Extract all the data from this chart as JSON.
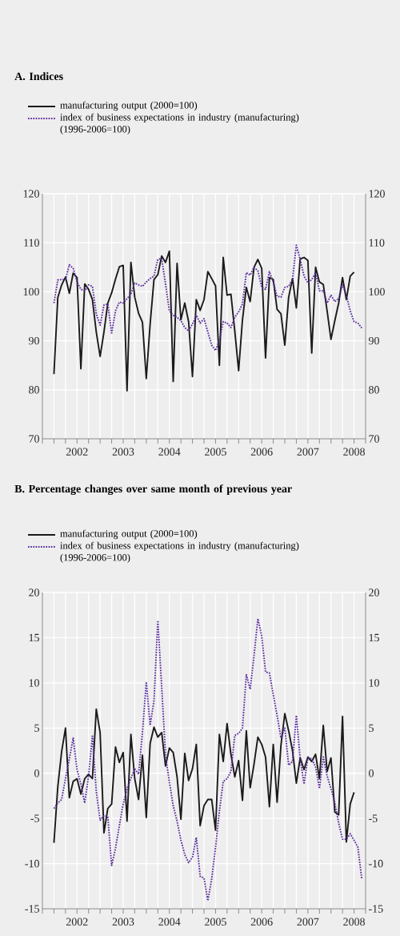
{
  "chart_data": [
    {
      "type": "line",
      "title": "A.  Indices",
      "x": [
        "2002-01",
        "2002-02",
        "2002-03",
        "2002-04",
        "2002-05",
        "2002-06",
        "2002-07",
        "2002-08",
        "2002-09",
        "2002-10",
        "2002-11",
        "2002-12",
        "2003-01",
        "2003-02",
        "2003-03",
        "2003-04",
        "2003-05",
        "2003-06",
        "2003-07",
        "2003-08",
        "2003-09",
        "2003-10",
        "2003-11",
        "2003-12",
        "2004-01",
        "2004-02",
        "2004-03",
        "2004-04",
        "2004-05",
        "2004-06",
        "2004-07",
        "2004-08",
        "2004-09",
        "2004-10",
        "2004-11",
        "2004-12",
        "2005-01",
        "2005-02",
        "2005-03",
        "2005-04",
        "2005-05",
        "2005-06",
        "2005-07",
        "2005-08",
        "2005-09",
        "2005-10",
        "2005-11",
        "2005-12",
        "2006-01",
        "2006-02",
        "2006-03",
        "2006-04",
        "2006-05",
        "2006-06",
        "2006-07",
        "2006-08",
        "2006-09",
        "2006-10",
        "2006-11",
        "2006-12",
        "2007-01",
        "2007-02",
        "2007-03",
        "2007-04",
        "2007-05",
        "2007-06",
        "2007-07",
        "2007-08",
        "2007-09",
        "2007-10",
        "2007-11",
        "2007-12",
        "2008-01",
        "2008-02",
        "2008-03",
        "2008-04",
        "2008-05",
        "2008-06",
        "2008-07",
        "2008-08",
        "2008-09"
      ],
      "series": [
        {
          "name": "manufacturing output (2000=100)",
          "color": "#1a1a1a",
          "line_style": "solid",
          "values": [
            83.2,
            98.8,
            101.4,
            103,
            99.7,
            103.8,
            102.9,
            84.3,
            101.6,
            100.5,
            98.4,
            91.8,
            86.8,
            91.8,
            97.7,
            99.8,
            102.6,
            105.1,
            105.4,
            79.8,
            106,
            98.9,
            95.6,
            93.8,
            82.3,
            93.4,
            102.5,
            103.5,
            107.3,
            106,
            108.3,
            81.7,
            105.8,
            94.3,
            97.7,
            93.9,
            82.7,
            98.4,
            96.2,
            98.4,
            104.1,
            102.7,
            101.2,
            85,
            107,
            99.3,
            99.5,
            92,
            83.9,
            94.3,
            100.9,
            98,
            105,
            106.6,
            104.8,
            86.5,
            102.9,
            102.5,
            96.4,
            95.5,
            89.1,
            98.9,
            102.7,
            96.7,
            106.7,
            107,
            106.4,
            87.5,
            105,
            102,
            101.5,
            96.1,
            90.3,
            94.1,
            97.7,
            102.9,
            98.4,
            103.2,
            104,
            null,
            null
          ]
        },
        {
          "name": "index of business expectations in industry (manufacturing) (1996-2006=100)",
          "color": "#5a2ca0",
          "line_style": "dotted",
          "values": [
            97.7,
            102.4,
            102.5,
            102.5,
            105.5,
            104.8,
            102,
            100.5,
            100.2,
            101.4,
            101.1,
            95.5,
            93.2,
            97.3,
            97.5,
            91.6,
            96.1,
            97.9,
            97.7,
            98.6,
            99.5,
            101.8,
            101.4,
            101.1,
            102,
            102.7,
            103.2,
            106.6,
            106.8,
            101.6,
            96.1,
            95.2,
            94.8,
            94.1,
            92.7,
            92,
            93.4,
            95.2,
            93.6,
            94.5,
            91.8,
            89.1,
            88,
            90.2,
            93.9,
            93.6,
            92.7,
            94.8,
            95.9,
            97.5,
            103.9,
            103.4,
            105,
            104.3,
            100.9,
            100.5,
            104.1,
            102,
            99.1,
            98.9,
            100.9,
            101.1,
            102.5,
            109.5,
            106.6,
            103.2,
            101.8,
            102.5,
            103.9,
            100.2,
            100.2,
            97.7,
            99.3,
            98,
            98.6,
            101.4,
            99.3,
            96.1,
            93.9,
            93.6,
            92.6
          ]
        }
      ],
      "xlim": [
        "2001-10-01",
        "2008-10-01"
      ],
      "xticks": [
        {
          "value": "2001-10-01",
          "label": null
        },
        {
          "value": "2002-01-01",
          "label": null
        },
        {
          "value": "2002-04-01",
          "label": null
        },
        {
          "value": "2002-07-01",
          "label": "2002"
        },
        {
          "value": "2002-10-01",
          "label": null
        },
        {
          "value": "2003-01-01",
          "label": null
        },
        {
          "value": "2003-04-01",
          "label": null
        },
        {
          "value": "2003-07-01",
          "label": "2003"
        },
        {
          "value": "2003-10-01",
          "label": null
        },
        {
          "value": "2004-01-01",
          "label": null
        },
        {
          "value": "2004-04-01",
          "label": null
        },
        {
          "value": "2004-07-01",
          "label": "2004"
        },
        {
          "value": "2004-10-01",
          "label": null
        },
        {
          "value": "2005-01-01",
          "label": null
        },
        {
          "value": "2005-04-01",
          "label": null
        },
        {
          "value": "2005-07-01",
          "label": "2005"
        },
        {
          "value": "2005-10-01",
          "label": null
        },
        {
          "value": "2006-01-01",
          "label": null
        },
        {
          "value": "2006-04-01",
          "label": null
        },
        {
          "value": "2006-07-01",
          "label": "2006"
        },
        {
          "value": "2006-10-01",
          "label": null
        },
        {
          "value": "2007-01-01",
          "label": null
        },
        {
          "value": "2007-04-01",
          "label": null
        },
        {
          "value": "2007-07-01",
          "label": "2007"
        },
        {
          "value": "2007-10-01",
          "label": null
        },
        {
          "value": "2008-01-01",
          "label": null
        },
        {
          "value": "2008-04-01",
          "label": null
        },
        {
          "value": "2008-07-01",
          "label": "2008"
        },
        {
          "value": "2008-10-01",
          "label": null
        }
      ],
      "ylim": [
        70,
        120
      ],
      "yticks": [
        70,
        80,
        90,
        100,
        110,
        120
      ],
      "y2lim": [
        70,
        120
      ],
      "y2ticks": [
        70,
        80,
        90,
        100,
        110,
        120
      ],
      "grid": true,
      "legend": "top left"
    },
    {
      "type": "line",
      "title": "B.  Percentage changes over same month of previous year",
      "x": [
        "2002-01",
        "2002-02",
        "2002-03",
        "2002-04",
        "2002-05",
        "2002-06",
        "2002-07",
        "2002-08",
        "2002-09",
        "2002-10",
        "2002-11",
        "2002-12",
        "2003-01",
        "2003-02",
        "2003-03",
        "2003-04",
        "2003-05",
        "2003-06",
        "2003-07",
        "2003-08",
        "2003-09",
        "2003-10",
        "2003-11",
        "2003-12",
        "2004-01",
        "2004-02",
        "2004-03",
        "2004-04",
        "2004-05",
        "2004-06",
        "2004-07",
        "2004-08",
        "2004-09",
        "2004-10",
        "2004-11",
        "2004-12",
        "2005-01",
        "2005-02",
        "2005-03",
        "2005-04",
        "2005-05",
        "2005-06",
        "2005-07",
        "2005-08",
        "2005-09",
        "2005-10",
        "2005-11",
        "2005-12",
        "2006-01",
        "2006-02",
        "2006-03",
        "2006-04",
        "2006-05",
        "2006-06",
        "2006-07",
        "2006-08",
        "2006-09",
        "2006-10",
        "2006-11",
        "2006-12",
        "2007-01",
        "2007-02",
        "2007-03",
        "2007-04",
        "2007-05",
        "2007-06",
        "2007-07",
        "2007-08",
        "2007-09",
        "2007-10",
        "2007-11",
        "2007-12",
        "2008-01",
        "2008-02",
        "2008-03",
        "2008-04",
        "2008-05",
        "2008-06",
        "2008-07",
        "2008-08",
        "2008-09"
      ],
      "series": [
        {
          "name": "manufacturing output (2000=100)",
          "color": "#1a1a1a",
          "line_style": "solid",
          "values": [
            -7.7,
            -1.5,
            2.4,
            5,
            -2.7,
            -0.9,
            -0.6,
            -2.3,
            -0.6,
            -0.1,
            -0.6,
            7.1,
            4.5,
            -6.6,
            -3.9,
            -3.4,
            2.9,
            1.2,
            2.3,
            -5.3,
            4.3,
            -0.6,
            -2.9,
            2,
            -4.9,
            3.3,
            5.1,
            4,
            4.5,
            0.8,
            2.8,
            2.3,
            -0.4,
            -5.1,
            2.2,
            -0.8,
            0.5,
            3.2,
            -5.8,
            -3.6,
            -2.9,
            -2.9,
            -6.3,
            4.3,
            1.3,
            5.5,
            2.1,
            -0.4,
            1.4,
            -3,
            4.7,
            -1.6,
            1,
            4,
            3.2,
            1.8,
            -3.7,
            3.2,
            -3.2,
            3.1,
            6.6,
            4.7,
            2.5,
            -1.1,
            1.7,
            0.4,
            1.8,
            1.3,
            2.1,
            -0.6,
            5.3,
            0.2,
            1.7,
            -4.3,
            -4.6,
            6.3,
            -7.6,
            -3.4,
            -2.1,
            null,
            null
          ]
        },
        {
          "name": "index of business expectations in industry (manufacturing) (1996-2006=100)",
          "color": "#5a2ca0",
          "line_style": "dotted",
          "values": [
            -3.9,
            -3.3,
            -2.9,
            -0.6,
            1.6,
            3.9,
            0.4,
            -1.2,
            -3.3,
            -0.3,
            4.1,
            -2,
            -5.2,
            -4.7,
            -4.8,
            -10.2,
            -8.3,
            -5.8,
            -3.4,
            -1.7,
            -0.6,
            0.5,
            -0.1,
            4.5,
            10.1,
            5.3,
            8,
            16.9,
            9.6,
            2,
            -1,
            -3.6,
            -5.3,
            -7.4,
            -9,
            -9.9,
            -9.3,
            -7.1,
            -11.4,
            -11.6,
            -14.1,
            -11.7,
            -8.2,
            -4.2,
            -0.9,
            -0.6,
            0.2,
            4.2,
            4.4,
            5,
            10.9,
            9.3,
            13,
            17.1,
            15.2,
            11.2,
            11.1,
            8.7,
            6.4,
            3.9,
            5,
            0.9,
            1.3,
            6.4,
            1.6,
            -1.2,
            1.7,
            1.6,
            0.7,
            -1.7,
            1.8,
            -0.3,
            -1.7,
            -3.3,
            -5.5,
            -7.3,
            -7.3,
            -6.7,
            -7.4,
            -8.2,
            -11.7
          ]
        }
      ],
      "xlim": [
        "2001-10-01",
        "2008-10-01"
      ],
      "xticks": [
        {
          "value": "2001-10-01",
          "label": null
        },
        {
          "value": "2002-01-01",
          "label": null
        },
        {
          "value": "2002-04-01",
          "label": null
        },
        {
          "value": "2002-07-01",
          "label": "2002"
        },
        {
          "value": "2002-10-01",
          "label": null
        },
        {
          "value": "2003-01-01",
          "label": null
        },
        {
          "value": "2003-04-01",
          "label": null
        },
        {
          "value": "2003-07-01",
          "label": "2003"
        },
        {
          "value": "2003-10-01",
          "label": null
        },
        {
          "value": "2004-01-01",
          "label": null
        },
        {
          "value": "2004-04-01",
          "label": null
        },
        {
          "value": "2004-07-01",
          "label": "2004"
        },
        {
          "value": "2004-10-01",
          "label": null
        },
        {
          "value": "2005-01-01",
          "label": null
        },
        {
          "value": "2005-04-01",
          "label": null
        },
        {
          "value": "2005-07-01",
          "label": "2005"
        },
        {
          "value": "2005-10-01",
          "label": null
        },
        {
          "value": "2006-01-01",
          "label": null
        },
        {
          "value": "2006-04-01",
          "label": null
        },
        {
          "value": "2006-07-01",
          "label": "2006"
        },
        {
          "value": "2006-10-01",
          "label": null
        },
        {
          "value": "2007-01-01",
          "label": null
        },
        {
          "value": "2007-04-01",
          "label": null
        },
        {
          "value": "2007-07-01",
          "label": "2007"
        },
        {
          "value": "2007-10-01",
          "label": null
        },
        {
          "value": "2008-01-01",
          "label": null
        },
        {
          "value": "2008-04-01",
          "label": null
        },
        {
          "value": "2008-07-01",
          "label": "2008"
        },
        {
          "value": "2008-10-01",
          "label": null
        }
      ],
      "ylim": [
        -15,
        20
      ],
      "yticks": [
        -15,
        -10,
        -5,
        0,
        5,
        10,
        15,
        20
      ],
      "y2lim": [
        -15,
        20
      ],
      "y2ticks": [
        -15,
        -10,
        -5,
        0,
        5,
        10,
        15,
        20
      ],
      "grid": true,
      "legend": "top left"
    }
  ]
}
